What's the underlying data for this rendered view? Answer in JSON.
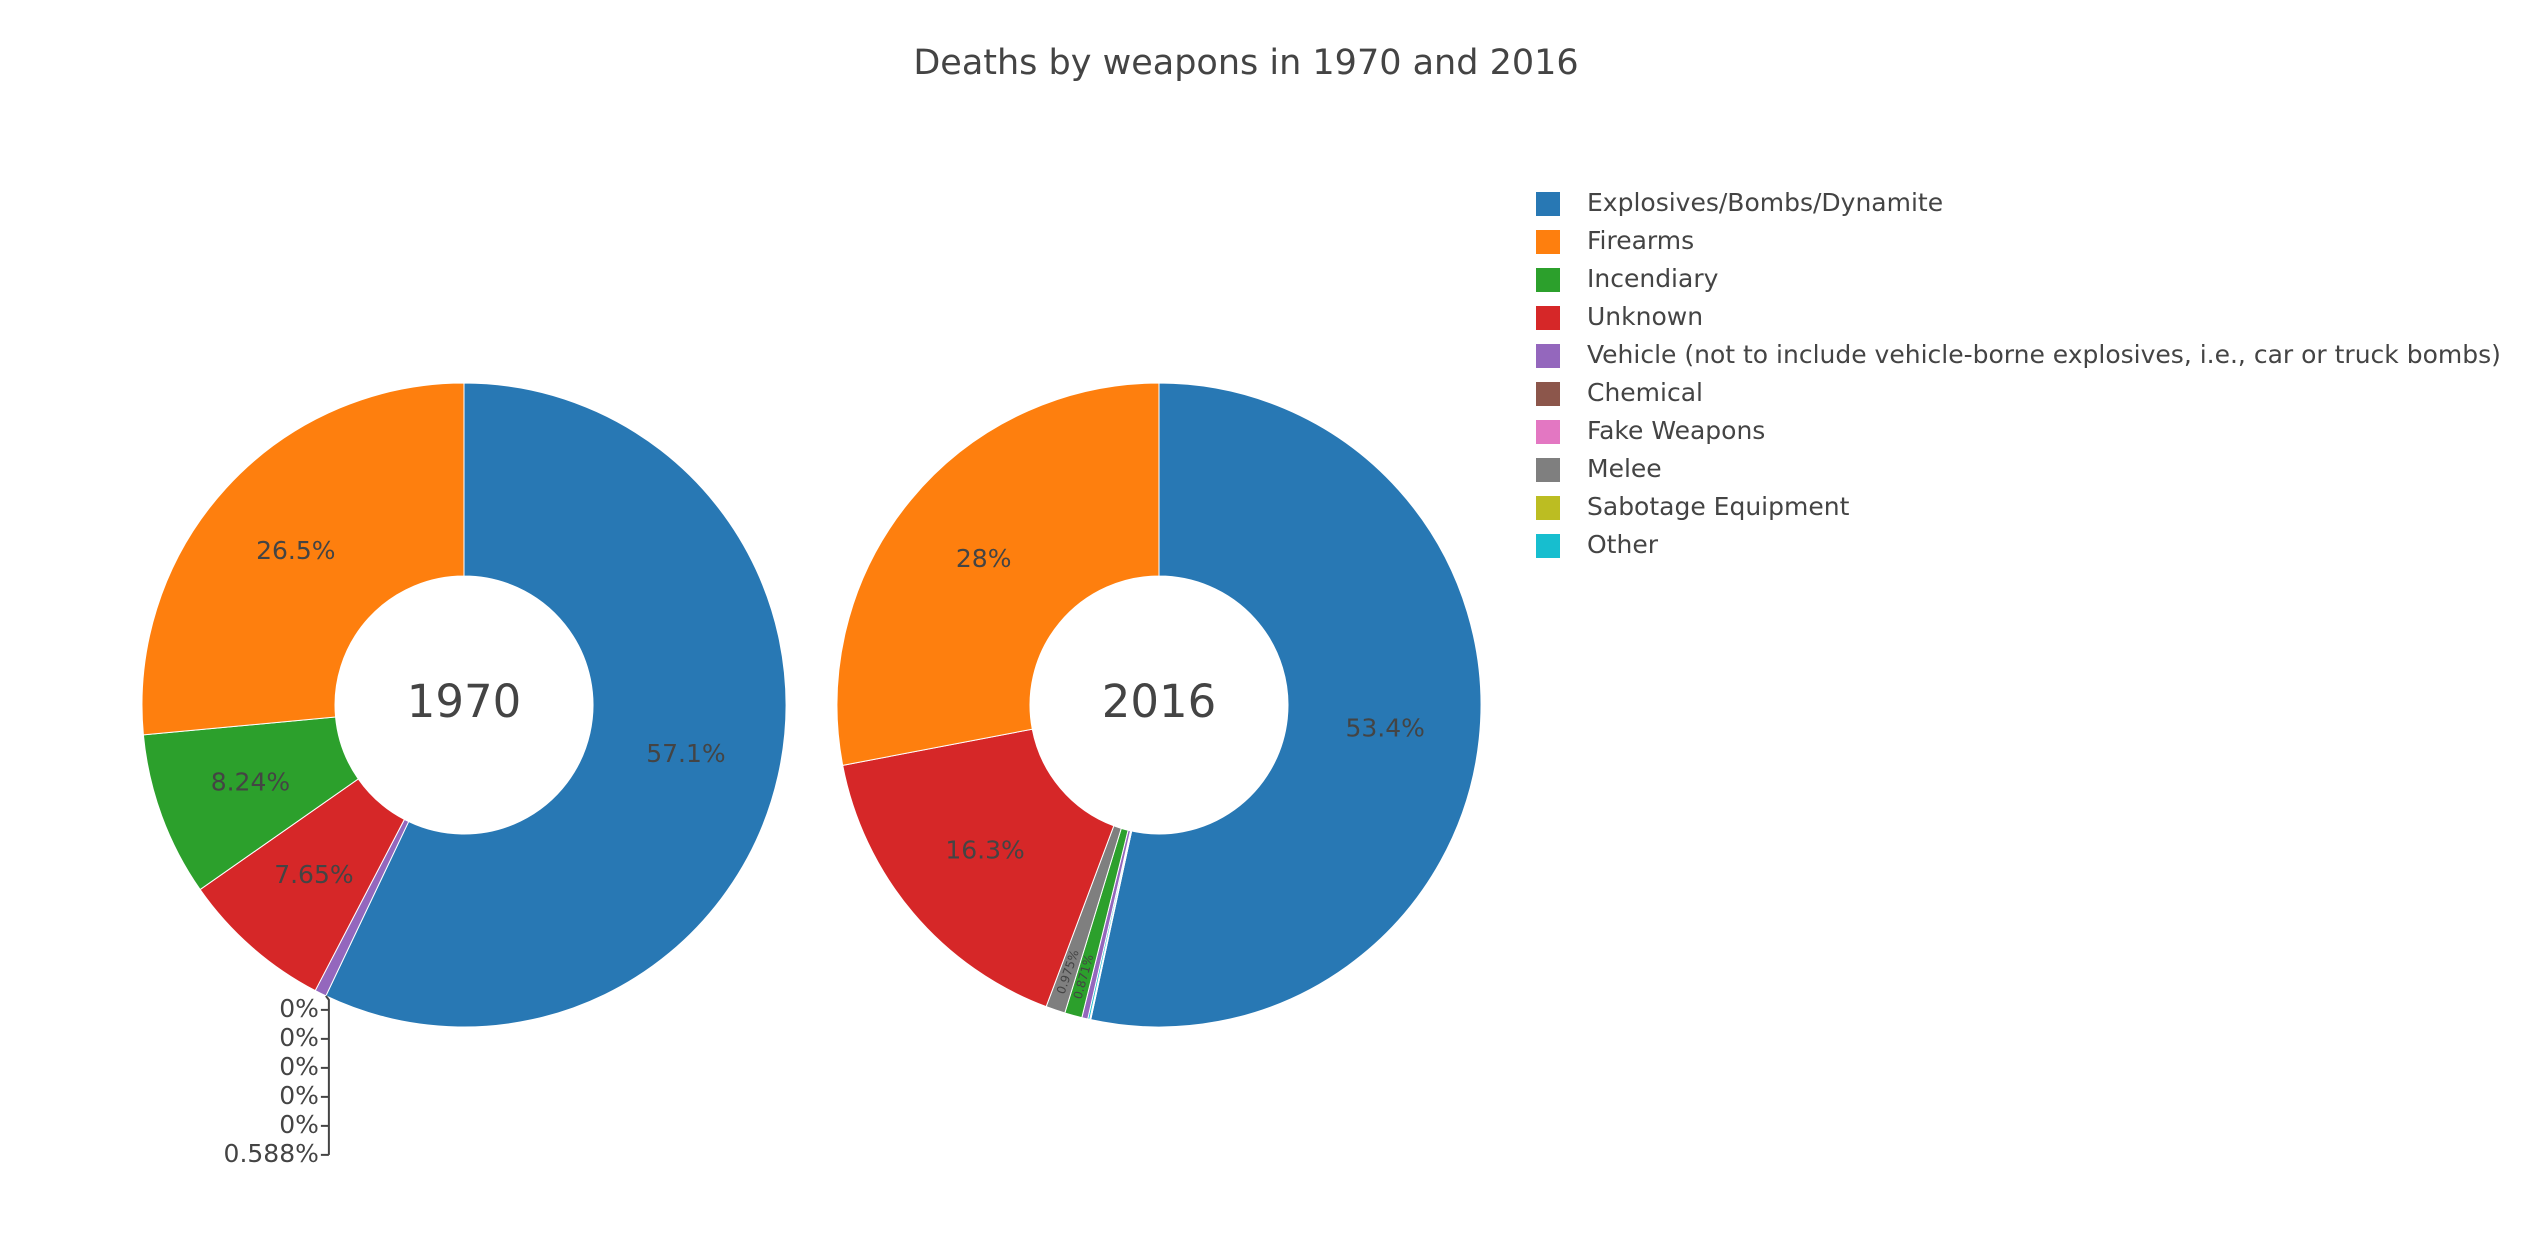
{
  "title": "Deaths by weapons in 1970 and 2016",
  "chart_data": [
    {
      "type": "pie",
      "title": "1970",
      "categories": [
        "Explosives/Bombs/Dynamite",
        "Firearms",
        "Incendiary",
        "Unknown",
        "Vehicle (not to include vehicle-borne explosives, i.e., car or truck bombs)",
        "Chemical",
        "Fake Weapons",
        "Melee",
        "Sabotage Equipment",
        "Other"
      ],
      "values": [
        57.1,
        26.5,
        8.24,
        7.65,
        0.588,
        0,
        0,
        0,
        0,
        0
      ],
      "value_labels": [
        "57.1%",
        "26.5%",
        "8.24%",
        "7.65%",
        "0.588%",
        "0%",
        "0%",
        "0%",
        "0%",
        "0%"
      ],
      "colors": [
        "#2878b4",
        "#fe7f0e",
        "#2ca02c",
        "#d62728",
        "#9467bd",
        "#8c564b",
        "#e377c2",
        "#7f7f7f",
        "#bcbd22",
        "#17becf"
      ]
    },
    {
      "type": "pie",
      "title": "2016",
      "categories": [
        "Explosives/Bombs/Dynamite",
        "Firearms",
        "Incendiary",
        "Unknown",
        "Vehicle (not to include vehicle-borne explosives, i.e., car or truck bombs)",
        "Chemical",
        "Fake Weapons",
        "Melee",
        "Sabotage Equipment",
        "Other"
      ],
      "values": [
        53.4,
        28,
        0.871,
        16.3,
        0.3,
        0.03,
        0.01,
        0.975,
        0.01,
        0.1
      ],
      "value_labels": [
        "53.4%",
        "28%",
        "0.871%",
        "16.3%",
        null,
        null,
        null,
        "0.975%",
        null,
        null
      ],
      "colors": [
        "#2878b4",
        "#fe7f0e",
        "#2ca02c",
        "#d62728",
        "#9467bd",
        "#8c564b",
        "#e377c2",
        "#7f7f7f",
        "#bcbd22",
        "#17becf"
      ]
    }
  ]
}
